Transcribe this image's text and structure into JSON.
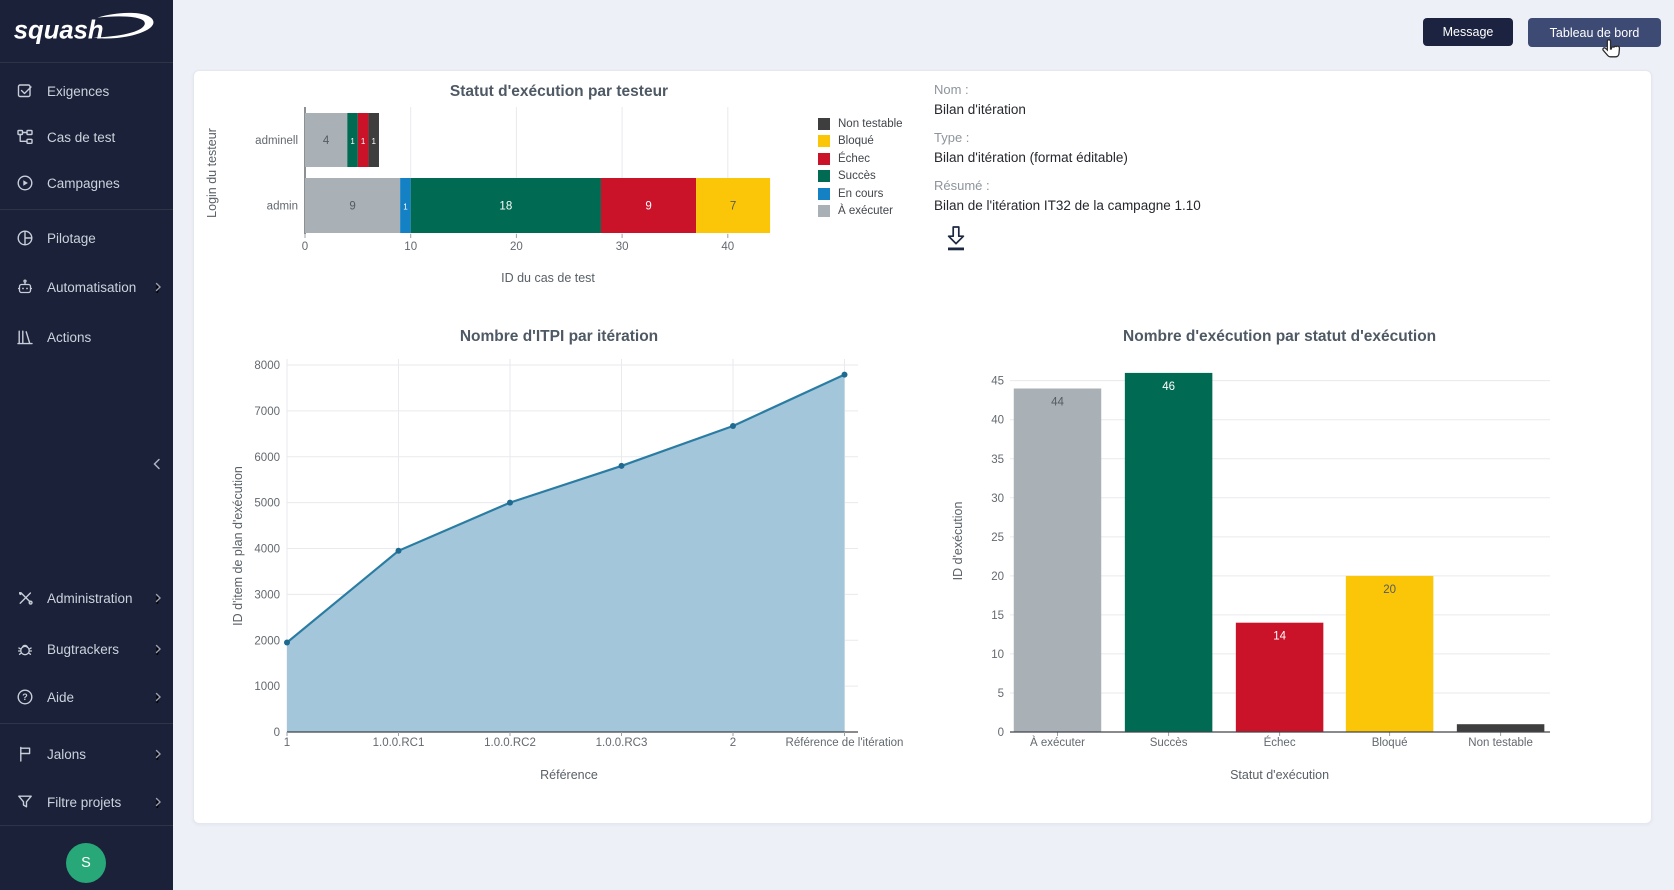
{
  "app": {
    "logo_text": "squash"
  },
  "header": {
    "message_button": "Message",
    "dashboard_button": "Tableau de bord"
  },
  "sidebar": {
    "main_items": [
      {
        "label": "Exigences",
        "icon": "requirements-icon",
        "has_submenu": false
      },
      {
        "label": "Cas de test",
        "icon": "test-cases-icon",
        "has_submenu": false
      },
      {
        "label": "Campagnes",
        "icon": "campaigns-icon",
        "has_submenu": false
      },
      {
        "label": "Pilotage",
        "icon": "reporting-icon",
        "has_submenu": false
      },
      {
        "label": "Automatisation",
        "icon": "automation-icon",
        "has_submenu": true
      },
      {
        "label": "Actions",
        "icon": "actions-icon",
        "has_submenu": false
      }
    ],
    "bottom_items": [
      {
        "label": "Administration",
        "icon": "administration-icon",
        "has_submenu": true
      },
      {
        "label": "Bugtrackers",
        "icon": "bugtracker-icon",
        "has_submenu": true
      },
      {
        "label": "Aide",
        "icon": "help-icon",
        "has_submenu": true
      },
      {
        "label": "Jalons",
        "icon": "milestones-icon",
        "has_submenu": true
      },
      {
        "label": "Filtre projets",
        "icon": "project-filter-icon",
        "has_submenu": true
      }
    ],
    "collapse_icon": "chevron-left-icon",
    "avatar_initial": "S"
  },
  "details_panel": {
    "name_label": "Nom :",
    "name_value": "Bilan d'itération",
    "type_label": "Type :",
    "type_value": "Bilan d'itération (format éditable)",
    "summary_label": "Résumé :",
    "summary_value": "Bilan de l'itération IT32 de la campagne 1.10",
    "download_icon": "download-icon"
  },
  "status_colors": {
    "À exécuter": "#a9b1b7",
    "En cours": "#1581c5",
    "Succès": "#006a52",
    "Échec": "#ca1228",
    "Bloqué": "#fcc608",
    "Non testable": "#3e3e3e"
  },
  "chart_data": [
    {
      "type": "bar",
      "orientation": "horizontal",
      "stacked": true,
      "title": "Statut d'exécution par testeur",
      "xlabel": "ID du cas de test",
      "ylabel": "Login du testeur",
      "categories": [
        "adminell",
        "admin"
      ],
      "series": [
        {
          "name": "À exécuter",
          "values": [
            4,
            9
          ]
        },
        {
          "name": "En cours",
          "values": [
            0,
            1
          ]
        },
        {
          "name": "Succès",
          "values": [
            1,
            18
          ]
        },
        {
          "name": "Échec",
          "values": [
            1,
            9
          ]
        },
        {
          "name": "Bloqué",
          "values": [
            0,
            7
          ]
        },
        {
          "name": "Non testable",
          "values": [
            1,
            0
          ]
        }
      ],
      "xticks": [
        0,
        10,
        20,
        30,
        40
      ],
      "xlim": [
        0,
        44
      ],
      "grid": true,
      "legend": [
        "Non testable",
        "Bloqué",
        "Échec",
        "Succès",
        "En cours",
        "À exécuter"
      ],
      "legend_position": "right"
    },
    {
      "type": "area",
      "title": "Nombre d'ITPI par itération",
      "xlabel": "Référence",
      "ylabel": "ID d'item de plan d'exécution",
      "categories": [
        "1",
        "1.0.0.RC1",
        "1.0.0.RC2",
        "1.0.0.RC3",
        "2",
        "Référence de l'itération"
      ],
      "values": [
        1950,
        3950,
        5000,
        5800,
        6670,
        7790
      ],
      "ylim": [
        0,
        8000
      ],
      "yticks": [
        0,
        1000,
        2000,
        3000,
        4000,
        5000,
        6000,
        7000,
        8000
      ],
      "grid": true,
      "line_color": "#2b7ca3",
      "fill_color": "#a3c6da",
      "marker_color": "#1e6a90"
    },
    {
      "type": "bar",
      "orientation": "vertical",
      "title": "Nombre d'exécution par statut d'exécution",
      "xlabel": "Statut d'exécution",
      "ylabel": "ID d'exécution",
      "categories": [
        "À exécuter",
        "Succès",
        "Échec",
        "Bloqué",
        "Non testable"
      ],
      "values": [
        44,
        46,
        14,
        20,
        1
      ],
      "bar_labels": [
        "44",
        "46",
        "14",
        "20",
        ""
      ],
      "yticks": [
        0,
        5,
        10,
        15,
        20,
        25,
        30,
        35,
        40,
        45
      ],
      "ylim": [
        0,
        46
      ],
      "grid": true
    }
  ]
}
